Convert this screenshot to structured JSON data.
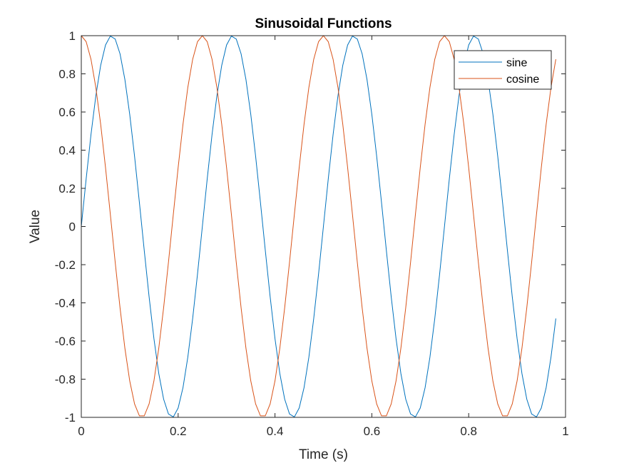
{
  "chart_data": {
    "type": "line",
    "title": "Sinusoidal Functions",
    "xlabel": "Time (s)",
    "ylabel": "Value",
    "xlim": [
      0,
      1
    ],
    "ylim": [
      -1,
      1
    ],
    "xticks": [
      "0",
      "0.2",
      "0.4",
      "0.6",
      "0.8",
      "1"
    ],
    "yticks": [
      "-1",
      "-0.8",
      "-0.6",
      "-0.4",
      "-0.2",
      "0",
      "0.2",
      "0.4",
      "0.6",
      "0.8",
      "1"
    ],
    "grid": false,
    "legend_position": "top-right",
    "x": [
      0,
      0.01,
      0.02,
      0.03,
      0.04,
      0.05,
      0.06,
      0.07,
      0.08,
      0.09,
      0.1,
      0.11,
      0.12,
      0.13,
      0.14,
      0.15,
      0.16,
      0.17,
      0.18,
      0.19,
      0.2,
      0.21,
      0.22,
      0.23,
      0.24,
      0.25,
      0.26,
      0.27,
      0.28,
      0.29,
      0.3,
      0.31,
      0.32,
      0.33,
      0.34,
      0.35,
      0.36,
      0.37,
      0.38,
      0.39,
      0.4,
      0.41,
      0.42,
      0.43,
      0.44,
      0.45,
      0.46,
      0.47,
      0.48,
      0.49,
      0.5,
      0.51,
      0.52,
      0.53,
      0.54,
      0.55,
      0.56,
      0.57,
      0.58,
      0.59,
      0.6,
      0.61,
      0.62,
      0.63,
      0.64,
      0.65,
      0.66,
      0.67,
      0.68,
      0.69,
      0.7,
      0.71,
      0.72,
      0.73,
      0.74,
      0.75,
      0.76,
      0.77,
      0.78,
      0.79,
      0.8,
      0.81,
      0.82,
      0.83,
      0.84,
      0.85,
      0.86,
      0.87,
      0.88,
      0.89,
      0.9,
      0.91,
      0.92,
      0.93,
      0.94,
      0.95,
      0.96,
      0.97,
      0.98
    ],
    "series": [
      {
        "name": "sine",
        "color": "#0072BD",
        "values": [
          0,
          0.2487,
          0.4818,
          0.6845,
          0.8443,
          0.9511,
          0.998,
          0.9823,
          0.9048,
          0.7705,
          0.5878,
          0.3681,
          0.1253,
          -0.1253,
          -0.3681,
          -0.5878,
          -0.7705,
          -0.9048,
          -0.9823,
          -0.998,
          -0.9511,
          -0.8443,
          -0.6845,
          -0.4818,
          -0.2487,
          0,
          0.2487,
          0.4818,
          0.6845,
          0.8443,
          0.9511,
          0.998,
          0.9823,
          0.9048,
          0.7705,
          0.5878,
          0.3681,
          0.1253,
          -0.1253,
          -0.3681,
          -0.5878,
          -0.7705,
          -0.9048,
          -0.9823,
          -0.998,
          -0.9511,
          -0.8443,
          -0.6845,
          -0.4818,
          -0.2487,
          0,
          0.2487,
          0.4818,
          0.6845,
          0.8443,
          0.9511,
          0.998,
          0.9823,
          0.9048,
          0.7705,
          0.5878,
          0.3681,
          0.1253,
          -0.1253,
          -0.3681,
          -0.5878,
          -0.7705,
          -0.9048,
          -0.9823,
          -0.998,
          -0.9511,
          -0.8443,
          -0.6845,
          -0.4818,
          -0.2487,
          0,
          0.2487,
          0.4818,
          0.6845,
          0.8443,
          0.9511,
          0.998,
          0.9823,
          0.9048,
          0.7705,
          0.5878,
          0.3681,
          0.1253,
          -0.1253,
          -0.3681,
          -0.5878,
          -0.7705,
          -0.9048,
          -0.9823,
          -0.998,
          -0.9511,
          -0.8443,
          -0.6845,
          -0.4818
        ]
      },
      {
        "name": "cosine",
        "color": "#D95319",
        "values": [
          1,
          0.9686,
          0.8763,
          0.729,
          0.5358,
          0.309,
          0.0628,
          -0.1874,
          -0.4258,
          -0.6374,
          -0.809,
          -0.9298,
          -0.9921,
          -0.9921,
          -0.9298,
          -0.809,
          -0.6374,
          -0.4258,
          -0.1874,
          0.0628,
          0.309,
          0.5358,
          0.729,
          0.8763,
          0.9686,
          1,
          0.9686,
          0.8763,
          0.729,
          0.5358,
          0.309,
          0.0628,
          -0.1874,
          -0.4258,
          -0.6374,
          -0.809,
          -0.9298,
          -0.9921,
          -0.9921,
          -0.9298,
          -0.809,
          -0.6374,
          -0.4258,
          -0.1874,
          0.0628,
          0.309,
          0.5358,
          0.729,
          0.8763,
          0.9686,
          1,
          0.9686,
          0.8763,
          0.729,
          0.5358,
          0.309,
          0.0628,
          -0.1874,
          -0.4258,
          -0.6374,
          -0.809,
          -0.9298,
          -0.9921,
          -0.9921,
          -0.9298,
          -0.809,
          -0.6374,
          -0.4258,
          -0.1874,
          0.0628,
          0.309,
          0.5358,
          0.729,
          0.8763,
          0.9686,
          1,
          0.9686,
          0.8763,
          0.729,
          0.5358,
          0.309,
          0.0628,
          -0.1874,
          -0.4258,
          -0.6374,
          -0.809,
          -0.9298,
          -0.9921,
          -0.9921,
          -0.9298,
          -0.809,
          -0.6374,
          -0.4258,
          -0.1874,
          0.0628,
          0.309,
          0.5358,
          0.729,
          0.8763
        ]
      }
    ]
  }
}
